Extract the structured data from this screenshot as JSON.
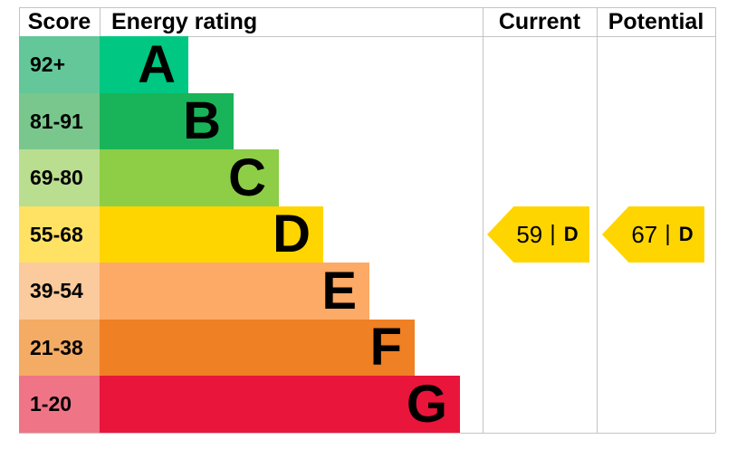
{
  "header": {
    "score": "Score",
    "energy_rating": "Energy rating",
    "current": "Current",
    "potential": "Potential"
  },
  "chart_data": {
    "type": "bar",
    "subtype": "epc-energy-rating",
    "orientation": "horizontal",
    "columns": [
      "Score",
      "Energy rating",
      "Current",
      "Potential"
    ],
    "bands": [
      {
        "letter": "A",
        "score_range": "92+",
        "bar_color": "#00c781",
        "score_cell_color": "#63c79a"
      },
      {
        "letter": "B",
        "score_range": "81-91",
        "bar_color": "#19b459",
        "score_cell_color": "#79c78d"
      },
      {
        "letter": "C",
        "score_range": "69-80",
        "bar_color": "#8dce46",
        "score_cell_color": "#bade90"
      },
      {
        "letter": "D",
        "score_range": "55-68",
        "bar_color": "#ffd500",
        "score_cell_color": "#ffe263"
      },
      {
        "letter": "E",
        "score_range": "39-54",
        "bar_color": "#fcaa65",
        "score_cell_color": "#fbca9d"
      },
      {
        "letter": "F",
        "score_range": "21-38",
        "bar_color": "#ef8023",
        "score_cell_color": "#f4ab63"
      },
      {
        "letter": "G",
        "score_range": "1-20",
        "bar_color": "#e9153b",
        "score_cell_color": "#ef7486"
      }
    ],
    "current": {
      "value": "59",
      "separator": "|",
      "band": "D",
      "marker_color": "#ffd500",
      "aligned_band_row": "D"
    },
    "potential": {
      "value": "67",
      "separator": "|",
      "band": "D",
      "marker_color": "#ffd500",
      "aligned_band_row": "D"
    },
    "grid": true,
    "grid_color": "#c4c4c4",
    "legend_position": "none"
  }
}
